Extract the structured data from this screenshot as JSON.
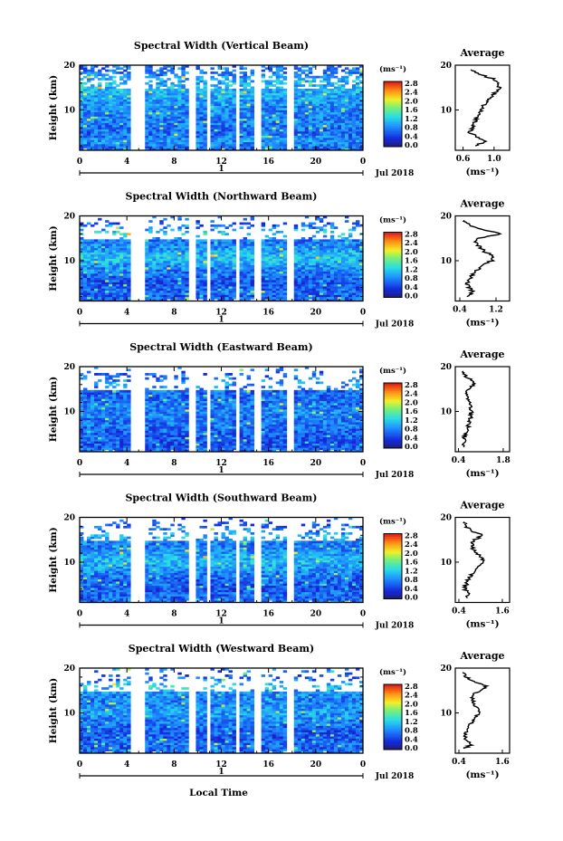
{
  "chart_data": [
    {
      "type": "heatmap",
      "title": "Spectral Width (Vertical Beam)",
      "ylabel": "Height (km)",
      "xticks": [
        "0",
        "4",
        "8",
        "12",
        "16",
        "20",
        "0"
      ],
      "day_label": "1",
      "date_label": "Jul 2018",
      "ylim": [
        1,
        20
      ],
      "yticks": [
        "20",
        "10"
      ],
      "colorbar": {
        "unit": "(ms⁻¹)",
        "range": [
          0,
          2.8
        ],
        "labels": [
          "2.8",
          "2.4",
          "2.0",
          "1.6",
          "1.2",
          "0.8",
          "0.4",
          "0.0"
        ]
      },
      "profile": {
        "title": "Average",
        "xlabel": "(ms⁻¹)",
        "xticks": [
          "0.6",
          "1.0"
        ],
        "xlim": [
          0.5,
          1.2
        ],
        "heights": [
          2,
          3,
          4,
          5,
          6,
          7,
          8,
          9,
          10,
          11,
          12,
          13,
          14,
          15,
          16,
          17,
          18,
          19
        ],
        "values": [
          0.75,
          0.9,
          0.78,
          0.68,
          0.72,
          0.74,
          0.77,
          0.8,
          0.83,
          0.87,
          0.92,
          0.97,
          1.02,
          1.07,
          1.05,
          0.98,
          0.8,
          0.7
        ]
      }
    },
    {
      "type": "heatmap",
      "title": "Spectral Width (Northward Beam)",
      "ylabel": "Height (km)",
      "xticks": [
        "0",
        "4",
        "8",
        "12",
        "16",
        "20",
        "0"
      ],
      "day_label": "1",
      "date_label": "Jul 2018",
      "ylim": [
        1,
        20
      ],
      "yticks": [
        "20",
        "10"
      ],
      "colorbar": {
        "unit": "(ms⁻¹)",
        "range": [
          0,
          2.8
        ],
        "labels": [
          "2.8",
          "2.4",
          "2.0",
          "1.6",
          "1.2",
          "0.8",
          "0.4",
          "0.0"
        ]
      },
      "profile": {
        "title": "Average",
        "xlabel": "(ms⁻¹)",
        "xticks": [
          "0.4",
          "1.2"
        ],
        "xlim": [
          0.3,
          1.5
        ],
        "heights": [
          2,
          3,
          4,
          5,
          6,
          7,
          8,
          9,
          10,
          11,
          12,
          13,
          14,
          15,
          16,
          17,
          18,
          19
        ],
        "values": [
          0.55,
          0.7,
          0.6,
          0.55,
          0.62,
          0.7,
          0.8,
          0.9,
          1.1,
          1.15,
          0.95,
          0.85,
          0.75,
          0.8,
          1.3,
          0.9,
          0.6,
          0.5
        ]
      }
    },
    {
      "type": "heatmap",
      "title": "Spectral Width (Eastward Beam)",
      "ylabel": "Height (km)",
      "xticks": [
        "0",
        "4",
        "8",
        "12",
        "16",
        "20",
        "0"
      ],
      "day_label": "1",
      "date_label": "Jul 2018",
      "ylim": [
        1,
        20
      ],
      "yticks": [
        "20",
        "10"
      ],
      "colorbar": {
        "unit": "(ms⁻¹)",
        "range": [
          0,
          2.8
        ],
        "labels": [
          "2.8",
          "2.4",
          "2.0",
          "1.6",
          "1.2",
          "0.8",
          "0.4",
          "0.0"
        ]
      },
      "profile": {
        "title": "Average",
        "xlabel": "(ms⁻¹)",
        "xticks": [
          "0.4",
          "1.8"
        ],
        "xlim": [
          0.3,
          2.0
        ],
        "heights": [
          2,
          3,
          4,
          5,
          6,
          7,
          8,
          9,
          10,
          11,
          12,
          13,
          14,
          15,
          16,
          17,
          18,
          19
        ],
        "values": [
          0.55,
          0.6,
          0.58,
          0.62,
          0.65,
          0.72,
          0.75,
          0.78,
          0.8,
          0.76,
          0.72,
          0.7,
          0.68,
          0.72,
          0.9,
          0.8,
          0.6,
          0.55
        ]
      }
    },
    {
      "type": "heatmap",
      "title": "Spectral Width (Southward Beam)",
      "ylabel": "Height (km)",
      "xticks": [
        "0",
        "4",
        "8",
        "12",
        "16",
        "20",
        "0"
      ],
      "day_label": "1",
      "date_label": "Jul 2018",
      "ylim": [
        1,
        20
      ],
      "yticks": [
        "20",
        "10"
      ],
      "colorbar": {
        "unit": "(ms⁻¹)",
        "range": [
          0,
          2.8
        ],
        "labels": [
          "2.8",
          "2.4",
          "2.0",
          "1.6",
          "1.2",
          "0.8",
          "0.4",
          "0.0"
        ]
      },
      "profile": {
        "title": "Average",
        "xlabel": "(ms⁻¹)",
        "xticks": [
          "0.4",
          "1.6"
        ],
        "xlim": [
          0.3,
          1.8
        ],
        "heights": [
          2,
          3,
          4,
          5,
          6,
          7,
          8,
          9,
          10,
          11,
          12,
          13,
          14,
          15,
          16,
          17,
          18,
          19
        ],
        "values": [
          0.6,
          0.7,
          0.55,
          0.6,
          0.65,
          0.72,
          0.82,
          0.95,
          1.1,
          1.05,
          0.9,
          0.8,
          0.75,
          0.85,
          1.05,
          0.75,
          0.6,
          0.55
        ]
      }
    },
    {
      "type": "heatmap",
      "title": "Spectral Width (Westward Beam)",
      "ylabel": "Height (km)",
      "xticks": [
        "0",
        "4",
        "8",
        "12",
        "16",
        "20",
        "0"
      ],
      "day_label": "1",
      "date_label": "Jul 2018",
      "ylim": [
        1,
        20
      ],
      "yticks": [
        "20",
        "10"
      ],
      "colorbar": {
        "unit": "(ms⁻¹)",
        "range": [
          0,
          2.8
        ],
        "labels": [
          "2.8",
          "2.4",
          "2.0",
          "1.6",
          "1.2",
          "0.8",
          "0.4",
          "0.0"
        ]
      },
      "profile": {
        "title": "Average",
        "xlabel": "(ms⁻¹)",
        "xticks": [
          "0.4",
          "1.6"
        ],
        "xlim": [
          0.3,
          1.8
        ],
        "heights": [
          2,
          3,
          4,
          5,
          6,
          7,
          8,
          9,
          10,
          11,
          12,
          13,
          14,
          15,
          16,
          17,
          18,
          19
        ],
        "values": [
          0.55,
          0.75,
          0.6,
          0.58,
          0.62,
          0.68,
          0.75,
          0.85,
          0.95,
          0.9,
          0.82,
          0.78,
          0.8,
          0.95,
          1.2,
          0.8,
          0.6,
          0.5
        ]
      }
    }
  ],
  "common": {
    "xlabel": "Local Time"
  }
}
